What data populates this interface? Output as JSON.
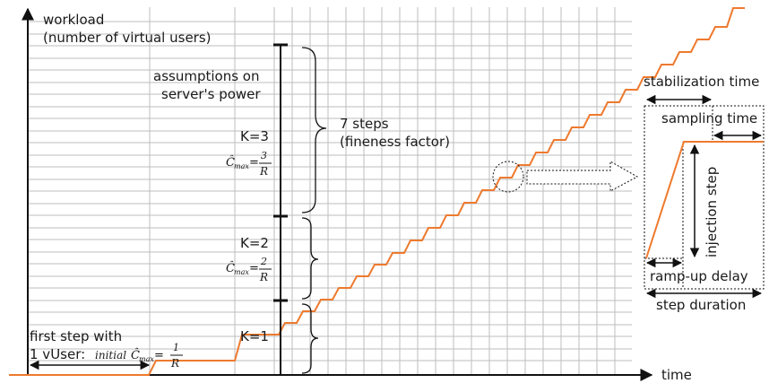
{
  "axes": {
    "y_label_line1": "workload",
    "y_label_line2": "(number of virtual users)",
    "x_label": "time"
  },
  "annotations": {
    "assumptions_line1": "assumptions on",
    "assumptions_line2": "server's power",
    "steps_line1": "7 steps",
    "steps_line2": "(fineness factor)",
    "k3": "K=3",
    "k2": "K=2",
    "k1": "K=1",
    "cmax_symbol": "Ĉ",
    "cmax_sub": "max",
    "frac_3_num": "3",
    "frac_2_num": "2",
    "frac_1_num": "1",
    "frac_den": "R",
    "first_step_line1": "first step with",
    "first_step_line2": "1 vUser:",
    "initial": "initial"
  },
  "detail": {
    "stabilization_time": "stabilization time",
    "sampling_time": "sampling time",
    "injection_step": "injection step",
    "ramp_up_delay": "ramp-up delay",
    "step_duration": "step duration"
  },
  "colors": {
    "workload_curve": "#ee7a2e",
    "grid": "#bdbdbd",
    "axis": "#111111"
  }
}
